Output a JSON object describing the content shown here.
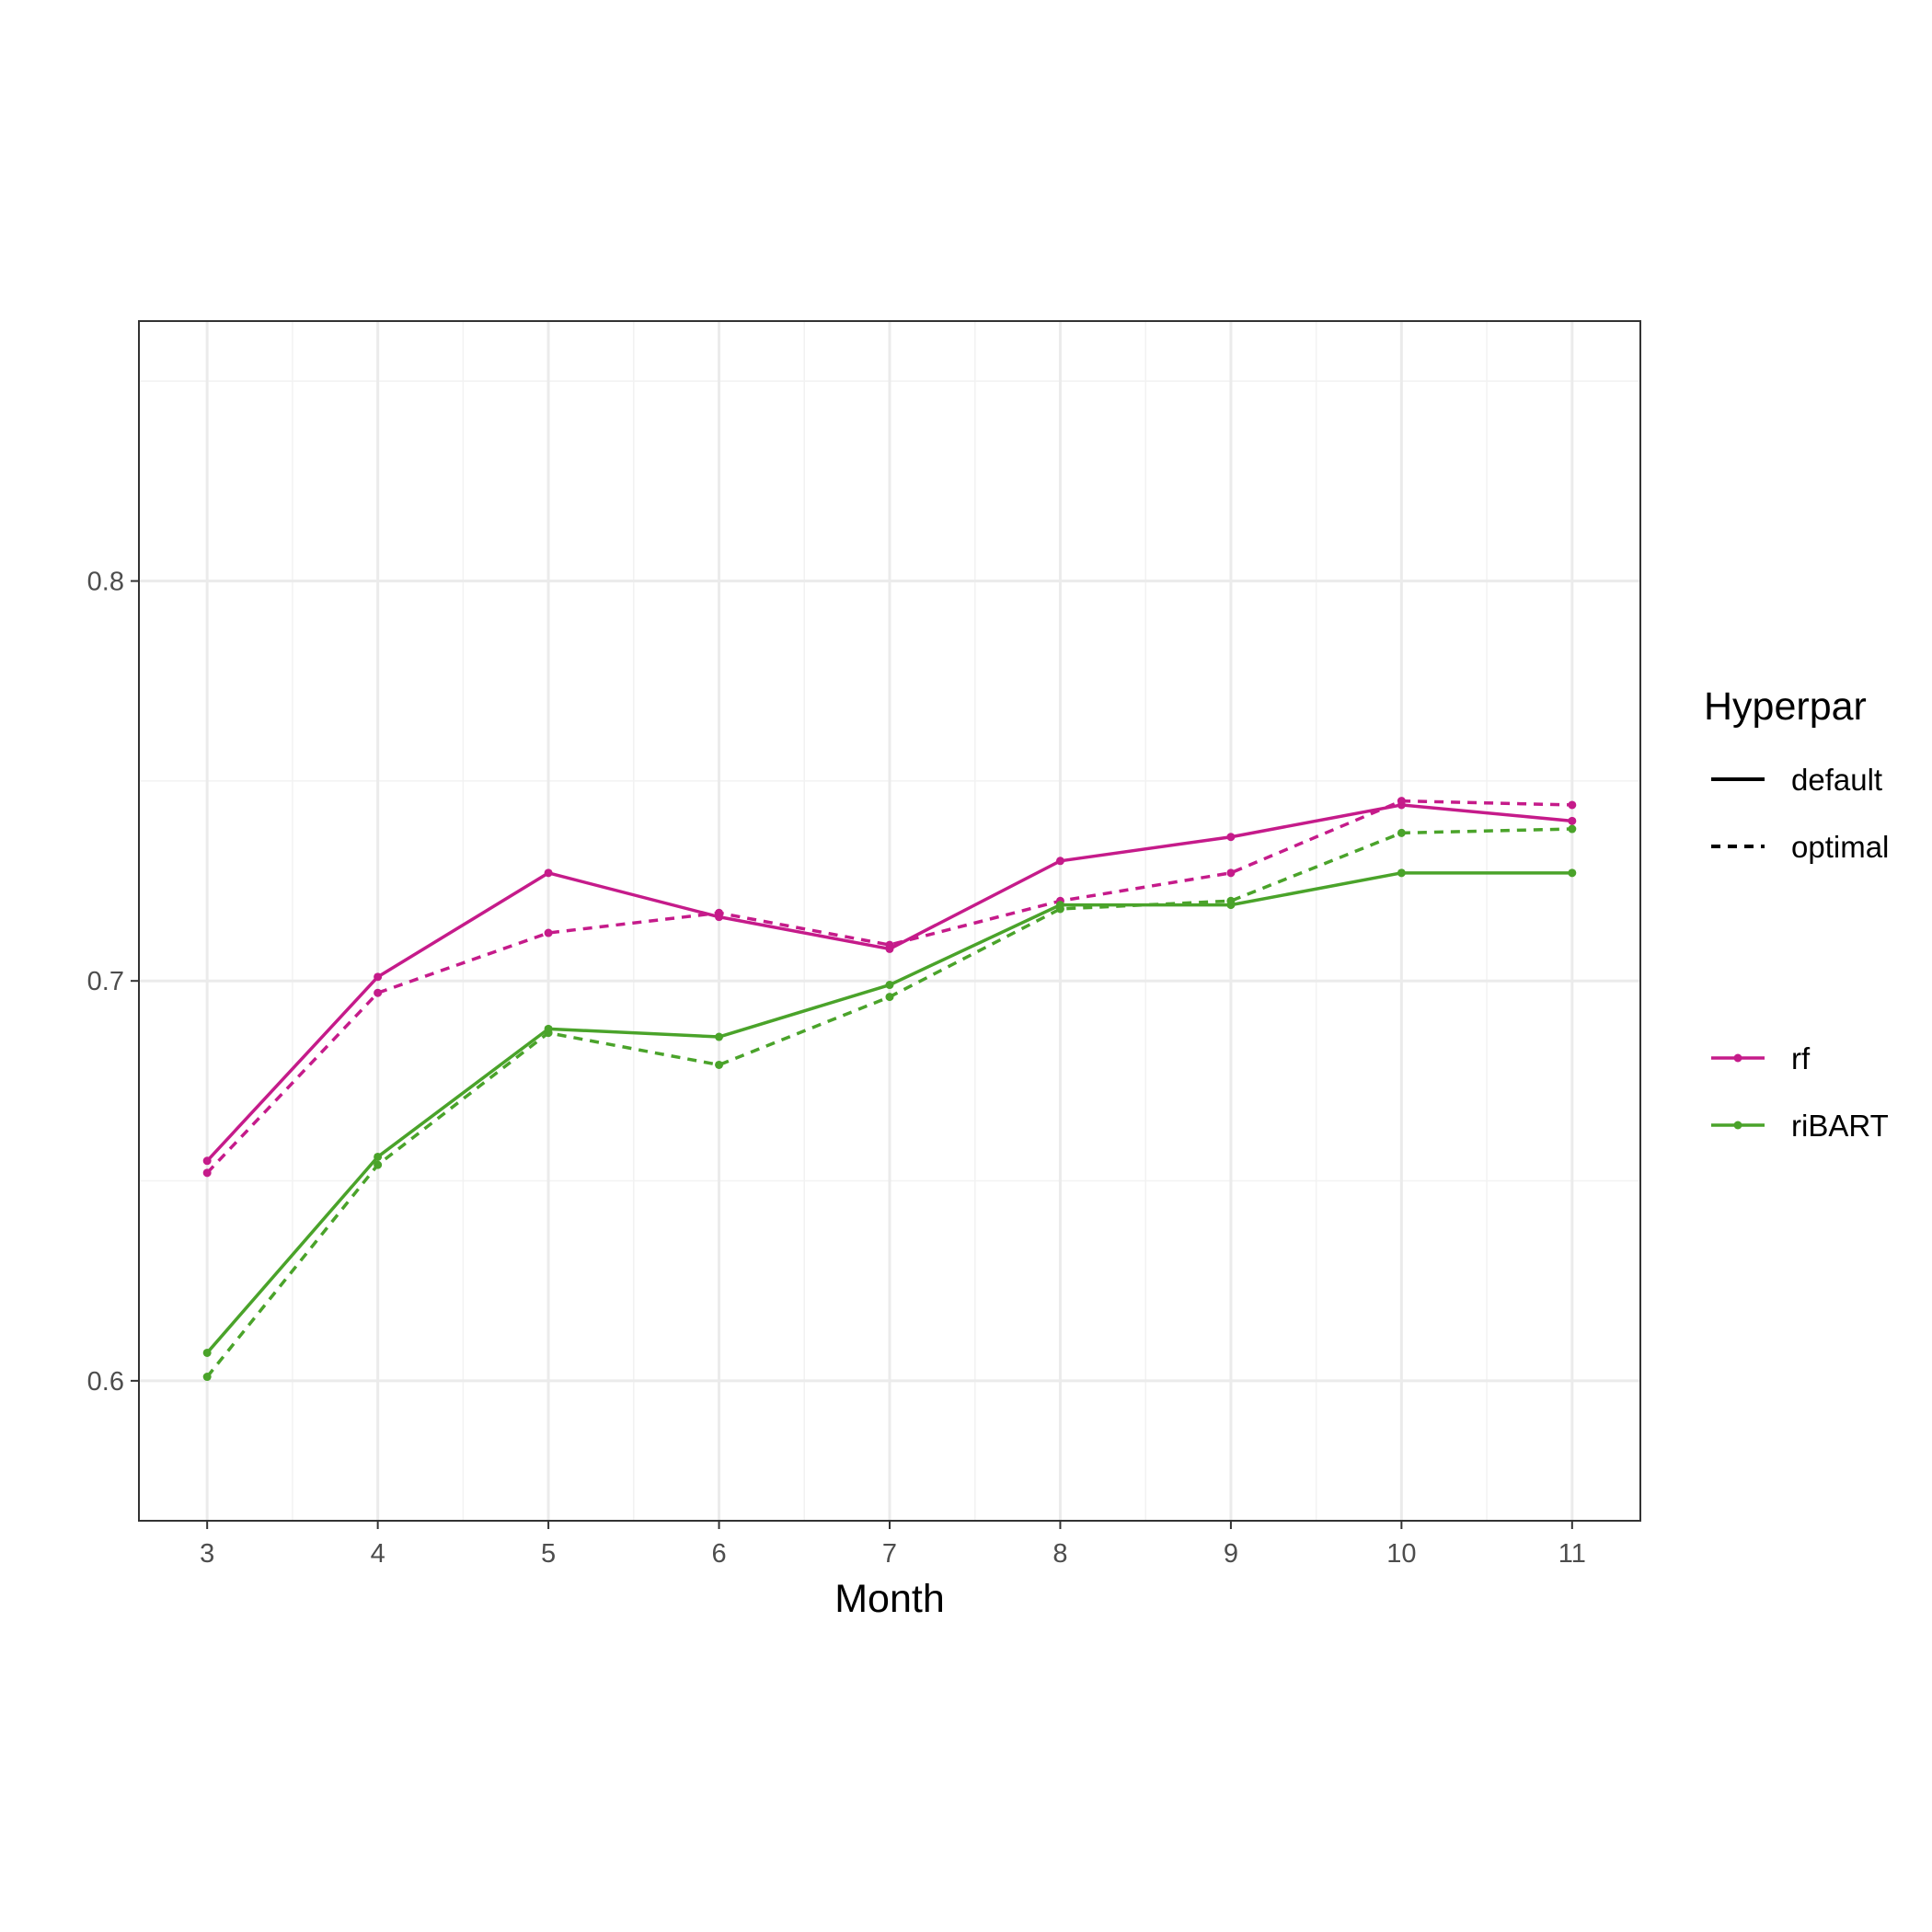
{
  "chart_data": {
    "type": "line",
    "xlabel": "Month",
    "ylabel": "",
    "x": [
      3,
      4,
      5,
      6,
      7,
      8,
      9,
      10,
      11
    ],
    "xlim": [
      2.6,
      11.4
    ],
    "ylim": [
      0.565,
      0.865
    ],
    "y_ticks": [
      0.6,
      0.7,
      0.8
    ],
    "y_tick_labels": [
      "0.6",
      "0.7",
      "0.8"
    ],
    "x_tick_labels": [
      "3",
      "4",
      "5",
      "6",
      "7",
      "8",
      "9",
      "10",
      "11"
    ],
    "grid": true,
    "legend_position": "right",
    "legend": {
      "linetype_title": "Hyperpar",
      "linetype_entries": [
        "default",
        "optimal"
      ],
      "color_entries": [
        "rf",
        "riBART"
      ]
    },
    "colors": {
      "rf": "#c51b8a",
      "riBART": "#4aa32a"
    },
    "series": [
      {
        "name": "rf",
        "hyperpar": "default",
        "values": [
          0.655,
          0.701,
          0.727,
          0.716,
          0.708,
          0.73,
          0.736,
          0.744,
          0.74
        ]
      },
      {
        "name": "rf",
        "hyperpar": "optimal",
        "values": [
          0.652,
          0.697,
          0.712,
          0.717,
          0.709,
          0.72,
          0.727,
          0.745,
          0.744
        ]
      },
      {
        "name": "riBART",
        "hyperpar": "default",
        "values": [
          0.607,
          0.656,
          0.688,
          0.686,
          0.699,
          0.719,
          0.719,
          0.727,
          0.727
        ]
      },
      {
        "name": "riBART",
        "hyperpar": "optimal",
        "values": [
          0.601,
          0.654,
          0.687,
          0.679,
          0.696,
          0.718,
          0.72,
          0.737,
          0.738
        ]
      }
    ]
  }
}
